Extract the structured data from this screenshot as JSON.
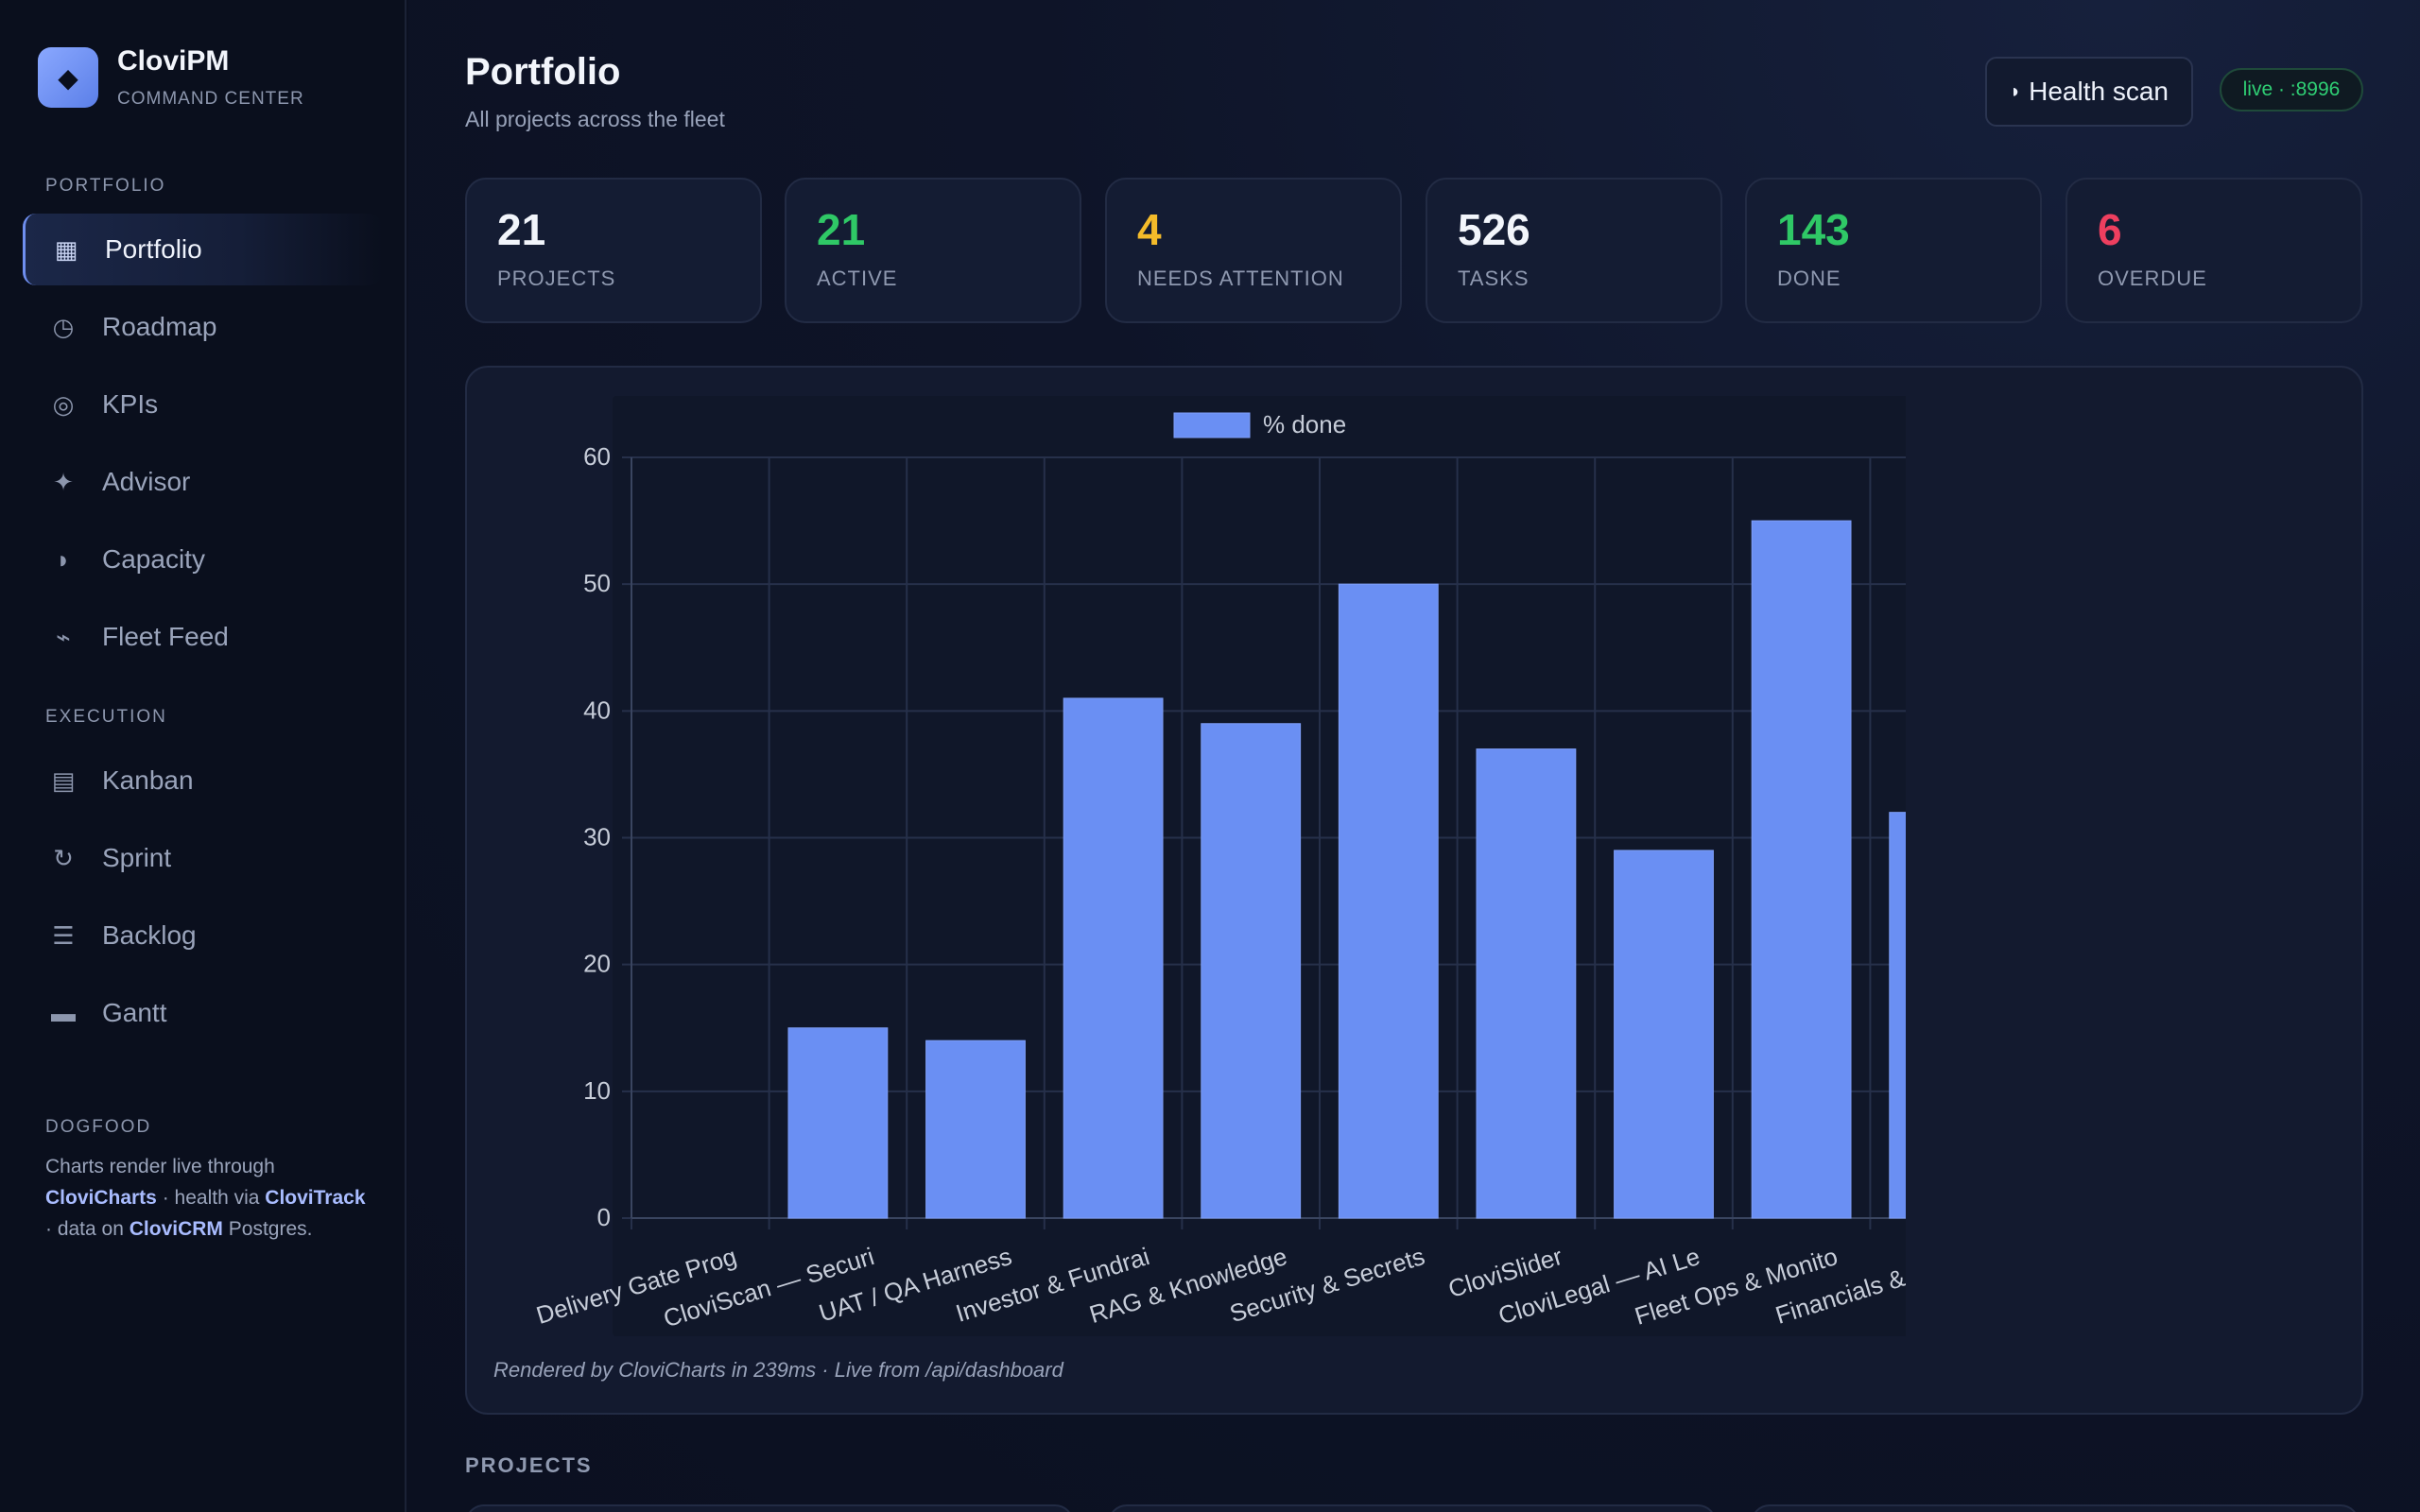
{
  "app": {
    "name": "CloviPM",
    "subtitle": "COMMAND CENTER",
    "logo_icon": "diamond-icon"
  },
  "sidebar": {
    "sections": [
      {
        "label": "PORTFOLIO",
        "items": [
          {
            "label": "Portfolio",
            "icon": "grid-icon",
            "glyph": "▦",
            "active": true
          },
          {
            "label": "Roadmap",
            "icon": "clock-icon",
            "glyph": "◷",
            "active": false
          },
          {
            "label": "KPIs",
            "icon": "target-icon",
            "glyph": "◎",
            "active": false
          },
          {
            "label": "Advisor",
            "icon": "sparkle-icon",
            "glyph": "✦",
            "active": false
          },
          {
            "label": "Capacity",
            "icon": "gauge-icon",
            "glyph": "◗",
            "active": false
          },
          {
            "label": "Fleet Feed",
            "icon": "pulse-icon",
            "glyph": "⌁",
            "active": false
          }
        ]
      },
      {
        "label": "EXECUTION",
        "items": [
          {
            "label": "Kanban",
            "icon": "board-icon",
            "glyph": "▤",
            "active": false
          },
          {
            "label": "Sprint",
            "icon": "cycle-icon",
            "glyph": "↻",
            "active": false
          },
          {
            "label": "Backlog",
            "icon": "list-icon",
            "glyph": "☰",
            "active": false
          },
          {
            "label": "Gantt",
            "icon": "gantt-icon",
            "glyph": "▬",
            "active": false
          }
        ]
      }
    ],
    "dogfood": {
      "label": "DOGFOOD",
      "text_1": "Charts render live through",
      "link_1": "CloviCharts",
      "text_2": "· health via",
      "link_2": "CloviTrack",
      "text_3": "· data on",
      "link_3": "CloviCRM",
      "text_4": "Postgres."
    }
  },
  "header": {
    "title": "Portfolio",
    "subtitle": "All projects across the fleet",
    "health_button": "Health scan",
    "health_icon": "gauge-icon",
    "live_badge": "live · :8996"
  },
  "stats": [
    {
      "value": "21",
      "label": "PROJECTS",
      "color": "#f2f5fb"
    },
    {
      "value": "21",
      "label": "ACTIVE",
      "color": "#2fc866"
    },
    {
      "value": "4",
      "label": "NEEDS ATTENTION",
      "color": "#f4bb2a"
    },
    {
      "value": "526",
      "label": "TASKS",
      "color": "#f2f5fb"
    },
    {
      "value": "143",
      "label": "DONE",
      "color": "#2fc866"
    },
    {
      "value": "6",
      "label": "OVERDUE",
      "color": "#ee3f5f"
    }
  ],
  "chart_data": {
    "type": "bar",
    "categories": [
      "Delivery Gate Prog",
      "CloviScan — Securi",
      "UAT / QA Harness",
      "Investor & Fundrai",
      "RAG & Knowledge",
      "Security & Secrets",
      "CloviSlider",
      "CloviLegal — AI Le",
      "Fleet Ops & Monito",
      "Financials & The N"
    ],
    "series": [
      {
        "name": "% done",
        "values": [
          0,
          15,
          14,
          41,
          39,
          50,
          37,
          29,
          55,
          32
        ],
        "color": "#6a8ff3"
      }
    ],
    "yticks": [
      0,
      10,
      20,
      30,
      40,
      50,
      60
    ],
    "ylim": [
      0,
      60
    ],
    "grid": true,
    "legend_position": "top-center"
  },
  "chart_caption": "Rendered by CloviCharts in 239ms · Live from /api/dashboard",
  "projects_heading": "PROJECTS",
  "colors": {
    "accent": "#6a8ff3",
    "background": "#0b1020",
    "panel": "#131a2f",
    "green": "#2fc866",
    "yellow": "#f4bb2a",
    "red": "#ee3f5f"
  }
}
